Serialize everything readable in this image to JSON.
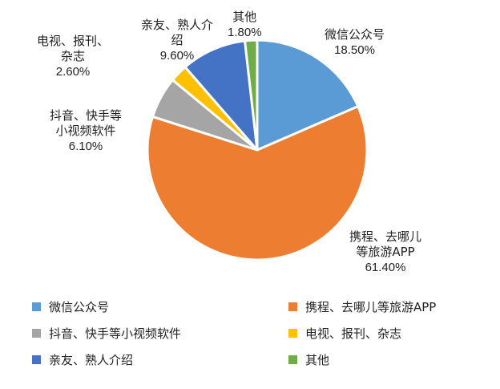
{
  "chart_data": {
    "type": "pie",
    "title": "",
    "legend_position": "bottom",
    "slices": [
      {
        "name": "微信公众号",
        "value": 18.5,
        "value_label": "18.50%",
        "color": "#5B9BD5",
        "label_lines": [
          "微信公众号"
        ]
      },
      {
        "name": "携程、去哪儿等旅游APP",
        "value": 61.4,
        "value_label": "61.40%",
        "color": "#ED7D31",
        "label_lines": [
          "携程、去哪儿",
          "等旅游APP"
        ]
      },
      {
        "name": "抖音、快手等小视频软件",
        "value": 6.1,
        "value_label": "6.10%",
        "color": "#A5A5A5",
        "label_lines": [
          "抖音、快手等",
          "小视频软件"
        ]
      },
      {
        "name": "电视、报刊、杂志",
        "value": 2.6,
        "value_label": "2.60%",
        "color": "#FFC000",
        "label_lines": [
          "电视、报刊、",
          "杂志"
        ]
      },
      {
        "name": "亲友、熟人介绍",
        "value": 9.6,
        "value_label": "9.60%",
        "color": "#4472C4",
        "label_lines": [
          "亲友、熟人介",
          "绍"
        ]
      },
      {
        "name": "其他",
        "value": 1.8,
        "value_label": "1.80%",
        "color": "#70AD47",
        "label_lines": [
          "其他"
        ]
      }
    ]
  }
}
